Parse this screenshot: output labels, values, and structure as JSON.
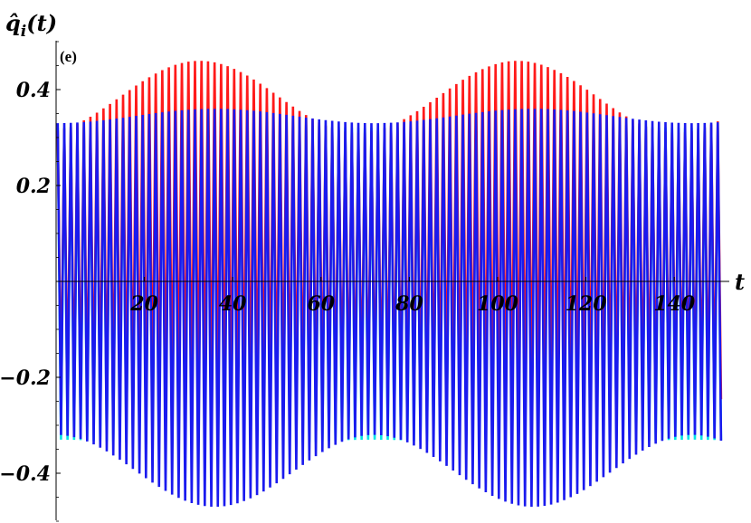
{
  "chart_data": {
    "type": "line",
    "panel_label": "(e)",
    "ylabel": "q̂",
    "ylabel_sub": "i",
    "ylabel_arg": "(t)",
    "xlabel": "t",
    "xlim": [
      0,
      150
    ],
    "ylim": [
      -0.5,
      0.5
    ],
    "x_ticks": [
      20,
      40,
      60,
      80,
      100,
      120,
      140
    ],
    "y_ticks": [
      0.4,
      0.2,
      -0.2,
      -0.4
    ],
    "y_tick_labels": [
      "0.4",
      "0.2",
      "−0.2",
      "−0.4"
    ],
    "grid": false,
    "legend": "none",
    "series": [
      {
        "color": "#00e5e5",
        "description_values": {
          "oscillation_period": 1.48,
          "max_base": 0.32,
          "max_amp": 0.015,
          "min_base": -0.33,
          "min_amp": 0.015,
          "envelope_period": 72,
          "phase": 0
        }
      },
      {
        "color": "#ff1a1a",
        "description_values": {
          "oscillation_period": 1.48,
          "max_base": 0.31,
          "max_amp": 0.15,
          "min_base": -0.24,
          "min_amp": 0.03,
          "envelope_period": 72,
          "phase": 3.5
        }
      },
      {
        "color": "#1a1aee",
        "description_values": {
          "oscillation_period": 1.48,
          "max_base": 0.33,
          "max_amp": 0.03,
          "min_base": -0.32,
          "min_amp": 0.15,
          "envelope_period": 72,
          "phase": 0
        }
      }
    ]
  }
}
